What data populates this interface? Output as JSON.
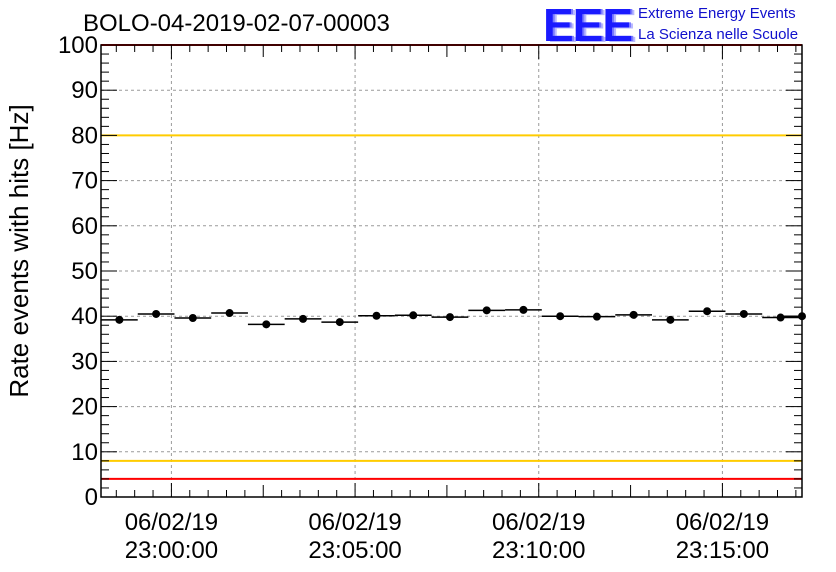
{
  "header": {
    "run_title": "BOLO-04-2019-02-07-00003"
  },
  "logo": {
    "mark": "EEE",
    "line1": "Extreme Energy Events",
    "line2": "La Scienza nelle Scuole",
    "color": "#1a1aff"
  },
  "chart_data": {
    "type": "scatter",
    "title": "BOLO-04-2019-02-07-00003",
    "xlabel": "",
    "ylabel": "Rate events with hits [Hz]",
    "ylim": [
      0,
      100
    ],
    "y_ticks": [
      0,
      10,
      20,
      30,
      40,
      50,
      60,
      70,
      80,
      90,
      100
    ],
    "xlim": [
      "22:58:05",
      "23:17:10"
    ],
    "x_ticks": [
      {
        "time": "23:00:00",
        "date": "06/02/19"
      },
      {
        "time": "23:05:00",
        "date": "06/02/19"
      },
      {
        "time": "23:10:00",
        "date": "06/02/19"
      },
      {
        "time": "23:15:00",
        "date": "06/02/19"
      }
    ],
    "grid": true,
    "bin_width_seconds": 60,
    "series": [
      {
        "x": [
          "22:58:35",
          "22:59:35",
          "23:00:35",
          "23:01:35",
          "23:02:35",
          "23:03:35",
          "23:04:35",
          "23:05:35",
          "23:06:35",
          "23:07:35",
          "23:08:35",
          "23:09:35",
          "23:10:35",
          "23:11:35",
          "23:12:35",
          "23:13:35",
          "23:14:35",
          "23:15:35",
          "23:16:35",
          "23:17:10"
        ],
        "y": [
          39.2,
          40.5,
          39.6,
          40.7,
          38.2,
          39.4,
          38.7,
          40.1,
          40.2,
          39.8,
          41.3,
          41.4,
          40.0,
          39.9,
          40.3,
          39.2,
          41.1,
          40.5,
          39.7,
          40.0
        ],
        "color": "#000000"
      }
    ],
    "reference_lines": [
      {
        "y": 100,
        "color": "#ff0000"
      },
      {
        "y": 80,
        "color": "#ffcc00"
      },
      {
        "y": 8,
        "color": "#ffcc00"
      },
      {
        "y": 4,
        "color": "#ff0000"
      }
    ]
  }
}
